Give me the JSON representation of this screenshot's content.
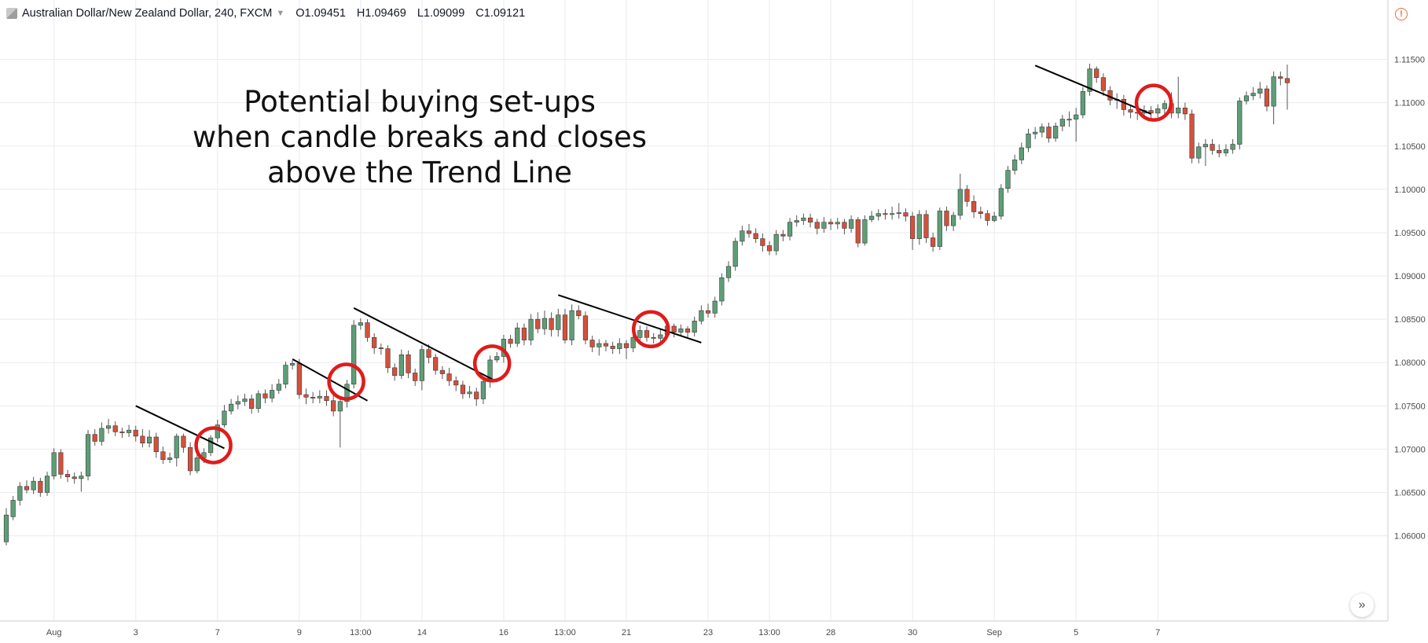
{
  "header": {
    "symbol": "Australian Dollar/New Zealand Dollar, 240, FXCM",
    "open": "O1.09451",
    "high": "H1.09469",
    "low": "L1.09099",
    "close": "C1.09121"
  },
  "colors": {
    "bull": "#5d9e77",
    "bear": "#d5503b",
    "trendline": "#000000",
    "circle": "#e01b1b",
    "grid": "#e9ebee",
    "axis_text": "#4a4a4a"
  },
  "icons": {
    "alert": "alert-icon",
    "scroll": "chevron-double-right-icon"
  },
  "chart_data": {
    "type": "candlestick",
    "title": "",
    "annotation": [
      "Potential buying set-ups",
      "when candle breaks and closes",
      "above the Trend Line"
    ],
    "ylim": [
      1.0547,
      1.1185
    ],
    "y_ticks": [
      1.06,
      1.065,
      1.07,
      1.075,
      1.08,
      1.085,
      1.09,
      1.095,
      1.1,
      1.105,
      1.11,
      1.115
    ],
    "y_tick_labels": [
      "1.06000",
      "1.06500",
      "1.07000",
      "1.07500",
      "1.08000",
      "1.08500",
      "1.09000",
      "1.09500",
      "1.10000",
      "1.10500",
      "1.11000",
      "1.11500"
    ],
    "x_labels": [
      {
        "label": "Aug",
        "index": 7
      },
      {
        "label": "3",
        "index": 19
      },
      {
        "label": "7",
        "index": 31
      },
      {
        "label": "9",
        "index": 43
      },
      {
        "label": "13:00",
        "index": 52
      },
      {
        "label": "14",
        "index": 61
      },
      {
        "label": "16",
        "index": 73
      },
      {
        "label": "13:00",
        "index": 82
      },
      {
        "label": "21",
        "index": 91
      },
      {
        "label": "23",
        "index": 103
      },
      {
        "label": "13:00",
        "index": 112
      },
      {
        "label": "28",
        "index": 121
      },
      {
        "label": "30",
        "index": 133
      },
      {
        "label": "Sep",
        "index": 145
      },
      {
        "label": "5",
        "index": 157
      },
      {
        "label": "7",
        "index": 169
      }
    ],
    "candles": [
      [
        1.0593,
        1.0624,
        1.0589,
        1.0632
      ],
      [
        1.0622,
        1.0641,
        1.0618,
        1.0646
      ],
      [
        1.0641,
        1.0657,
        1.0635,
        1.0662
      ],
      [
        1.0657,
        1.0653,
        1.0649,
        1.0664
      ],
      [
        1.0653,
        1.0663,
        1.0648,
        1.0668
      ],
      [
        1.0663,
        1.065,
        1.0645,
        1.0667
      ],
      [
        1.065,
        1.0669,
        1.0646,
        1.0674
      ],
      [
        1.0669,
        1.0696,
        1.0665,
        1.0701
      ],
      [
        1.0696,
        1.0671,
        1.0666,
        1.07
      ],
      [
        1.0671,
        1.0668,
        1.0662,
        1.0676
      ],
      [
        1.0668,
        1.0666,
        1.066,
        1.0673
      ],
      [
        1.0666,
        1.0669,
        1.0651,
        1.0674
      ],
      [
        1.0669,
        1.0717,
        1.0664,
        1.0722
      ],
      [
        1.0717,
        1.0709,
        1.0704,
        1.0723
      ],
      [
        1.0709,
        1.0724,
        1.0704,
        1.0731
      ],
      [
        1.0724,
        1.0727,
        1.0718,
        1.0735
      ],
      [
        1.0727,
        1.072,
        1.0715,
        1.0732
      ],
      [
        1.072,
        1.0719,
        1.0713,
        1.0725
      ],
      [
        1.0719,
        1.0722,
        1.0714,
        1.0728
      ],
      [
        1.0722,
        1.0715,
        1.0709,
        1.0727
      ],
      [
        1.0715,
        1.0707,
        1.0702,
        1.0723
      ],
      [
        1.0707,
        1.0714,
        1.0702,
        1.0722
      ],
      [
        1.0714,
        1.0697,
        1.069,
        1.0719
      ],
      [
        1.0697,
        1.0688,
        1.0683,
        1.0703
      ],
      [
        1.0688,
        1.069,
        1.0684,
        1.0696
      ],
      [
        1.069,
        1.0715,
        1.068,
        1.0718
      ],
      [
        1.0715,
        1.0702,
        1.0696,
        1.0718
      ],
      [
        1.0702,
        1.0675,
        1.067,
        1.0708
      ],
      [
        1.0675,
        1.069,
        1.0672,
        1.0697
      ],
      [
        1.069,
        1.0696,
        1.0684,
        1.0701
      ],
      [
        1.0696,
        1.0713,
        1.0692,
        1.0716
      ],
      [
        1.0713,
        1.0728,
        1.0708,
        1.0734
      ],
      [
        1.0728,
        1.0744,
        1.0725,
        1.0751
      ],
      [
        1.0744,
        1.0752,
        1.074,
        1.0758
      ],
      [
        1.0752,
        1.0755,
        1.0746,
        1.0762
      ],
      [
        1.0755,
        1.0758,
        1.075,
        1.0764
      ],
      [
        1.0758,
        1.0747,
        1.0741,
        1.0763
      ],
      [
        1.0747,
        1.0764,
        1.0742,
        1.0768
      ],
      [
        1.0764,
        1.0759,
        1.0753,
        1.0769
      ],
      [
        1.0759,
        1.0768,
        1.0754,
        1.0775
      ],
      [
        1.0768,
        1.0775,
        1.0764,
        1.0781
      ],
      [
        1.0775,
        1.0797,
        1.077,
        1.0801
      ],
      [
        1.0797,
        1.0799,
        1.0792,
        1.0803
      ],
      [
        1.0799,
        1.0763,
        1.0758,
        1.0804
      ],
      [
        1.0763,
        1.076,
        1.0752,
        1.077
      ],
      [
        1.076,
        1.0759,
        1.0753,
        1.0766
      ],
      [
        1.0759,
        1.0761,
        1.0753,
        1.0768
      ],
      [
        1.0761,
        1.0756,
        1.075,
        1.0768
      ],
      [
        1.0756,
        1.0744,
        1.0738,
        1.0762
      ],
      [
        1.0744,
        1.0755,
        1.0702,
        1.076
      ],
      [
        1.0755,
        1.0775,
        1.0748,
        1.078
      ],
      [
        1.0775,
        1.0843,
        1.077,
        1.0849
      ],
      [
        1.0843,
        1.0846,
        1.0838,
        1.0851
      ],
      [
        1.0846,
        1.0829,
        1.0824,
        1.085
      ],
      [
        1.0829,
        1.0817,
        1.081,
        1.0834
      ],
      [
        1.0817,
        1.0816,
        1.0809,
        1.0822
      ],
      [
        1.0816,
        1.0794,
        1.0788,
        1.082
      ],
      [
        1.0794,
        1.0785,
        1.0779,
        1.0799
      ],
      [
        1.0785,
        1.0809,
        1.0781,
        1.0815
      ],
      [
        1.0809,
        1.0788,
        1.0782,
        1.0814
      ],
      [
        1.0788,
        1.0779,
        1.0773,
        1.0793
      ],
      [
        1.0779,
        1.0815,
        1.0768,
        1.082
      ],
      [
        1.0815,
        1.0806,
        1.0799,
        1.0821
      ],
      [
        1.0806,
        1.0791,
        1.0786,
        1.081
      ],
      [
        1.0791,
        1.0787,
        1.0781,
        1.0796
      ],
      [
        1.0787,
        1.0779,
        1.0773,
        1.0794
      ],
      [
        1.0779,
        1.0774,
        1.0767,
        1.0784
      ],
      [
        1.0774,
        1.0764,
        1.0758,
        1.0779
      ],
      [
        1.0764,
        1.0766,
        1.0759,
        1.0773
      ],
      [
        1.0766,
        1.0758,
        1.075,
        1.0771
      ],
      [
        1.0758,
        1.0778,
        1.0752,
        1.0783
      ],
      [
        1.0778,
        1.0803,
        1.0771,
        1.0808
      ],
      [
        1.0803,
        1.0807,
        1.08,
        1.0812
      ],
      [
        1.0807,
        1.0827,
        1.08,
        1.0832
      ],
      [
        1.0827,
        1.0822,
        1.0817,
        1.0832
      ],
      [
        1.0822,
        1.084,
        1.0818,
        1.0846
      ],
      [
        1.084,
        1.0826,
        1.082,
        1.0845
      ],
      [
        1.0826,
        1.085,
        1.082,
        1.0856
      ],
      [
        1.085,
        1.0839,
        1.0834,
        1.0858
      ],
      [
        1.0839,
        1.0851,
        1.0832,
        1.086
      ],
      [
        1.0851,
        1.0838,
        1.083,
        1.0858
      ],
      [
        1.0838,
        1.0855,
        1.083,
        1.0862
      ],
      [
        1.0855,
        1.0826,
        1.0822,
        1.0862
      ],
      [
        1.0826,
        1.086,
        1.082,
        1.0867
      ],
      [
        1.086,
        1.0854,
        1.085,
        1.0866
      ],
      [
        1.0854,
        1.0826,
        1.0821,
        1.0859
      ],
      [
        1.0826,
        1.0818,
        1.0812,
        1.0831
      ],
      [
        1.0818,
        1.0822,
        1.0808,
        1.0827
      ],
      [
        1.0822,
        1.0819,
        1.0813,
        1.0826
      ],
      [
        1.0819,
        1.0816,
        1.081,
        1.0824
      ],
      [
        1.0816,
        1.0822,
        1.081,
        1.0828
      ],
      [
        1.0822,
        1.0817,
        1.0804,
        1.0826
      ],
      [
        1.0817,
        1.0829,
        1.0812,
        1.0834
      ],
      [
        1.0829,
        1.0837,
        1.0824,
        1.0843
      ],
      [
        1.0837,
        1.0829,
        1.0824,
        1.0842
      ],
      [
        1.0829,
        1.0828,
        1.0822,
        1.0834
      ],
      [
        1.0828,
        1.0832,
        1.0824,
        1.0838
      ],
      [
        1.0832,
        1.0842,
        1.0828,
        1.0846
      ],
      [
        1.0842,
        1.0835,
        1.0829,
        1.0845
      ],
      [
        1.0835,
        1.0839,
        1.083,
        1.0844
      ],
      [
        1.0839,
        1.0835,
        1.0829,
        1.0842
      ],
      [
        1.0835,
        1.0848,
        1.083,
        1.0853
      ],
      [
        1.0848,
        1.086,
        1.0844,
        1.0866
      ],
      [
        1.086,
        1.0857,
        1.0852,
        1.0868
      ],
      [
        1.0857,
        1.0871,
        1.0852,
        1.0876
      ],
      [
        1.0871,
        1.0898,
        1.0866,
        1.0903
      ],
      [
        1.0898,
        1.0911,
        1.0893,
        1.0917
      ],
      [
        1.0911,
        1.094,
        1.0906,
        1.0944
      ],
      [
        1.094,
        1.0952,
        1.0935,
        1.0958
      ],
      [
        1.0952,
        1.0949,
        1.0944,
        1.096
      ],
      [
        1.0949,
        1.0943,
        1.0938,
        1.0955
      ],
      [
        1.0943,
        1.0935,
        1.0928,
        1.0949
      ],
      [
        1.0935,
        1.0929,
        1.0924,
        1.094
      ],
      [
        1.0929,
        1.0948,
        1.0924,
        1.0953
      ],
      [
        1.0948,
        1.0946,
        1.094,
        1.0953
      ],
      [
        1.0946,
        1.0962,
        1.0941,
        1.0967
      ],
      [
        1.0962,
        1.0964,
        1.0957,
        1.097
      ],
      [
        1.0964,
        1.0967,
        1.0959,
        1.0972
      ],
      [
        1.0967,
        1.0962,
        1.0956,
        1.0972
      ],
      [
        1.0962,
        1.0955,
        1.0948,
        1.0966
      ],
      [
        1.0955,
        1.0962,
        1.095,
        1.0968
      ],
      [
        1.0962,
        1.096,
        1.0953,
        1.0966
      ],
      [
        1.096,
        1.0962,
        1.0954,
        1.0967
      ],
      [
        1.0962,
        1.0955,
        1.0948,
        1.0966
      ],
      [
        1.0955,
        1.0965,
        1.095,
        1.097
      ],
      [
        1.0965,
        1.0938,
        1.0933,
        1.0968
      ],
      [
        1.0938,
        1.0965,
        1.0935,
        1.097
      ],
      [
        1.0965,
        1.0969,
        1.0962,
        1.0975
      ],
      [
        1.0969,
        1.0972,
        1.0964,
        1.0977
      ],
      [
        1.0972,
        1.0971,
        1.0965,
        1.0977
      ],
      [
        1.0971,
        1.0972,
        1.0965,
        1.098
      ],
      [
        1.0972,
        1.0973,
        1.0966,
        1.0984
      ],
      [
        1.0973,
        1.0969,
        1.0963,
        1.0978
      ],
      [
        1.0969,
        1.0943,
        1.093,
        1.0974
      ],
      [
        1.0943,
        1.0971,
        1.0936,
        1.0976
      ],
      [
        1.0971,
        1.0944,
        1.0938,
        1.0976
      ],
      [
        1.0944,
        1.0934,
        1.0928,
        1.095
      ],
      [
        1.0934,
        1.0975,
        1.093,
        1.0979
      ],
      [
        1.0975,
        1.0958,
        1.0952,
        1.098
      ],
      [
        1.0958,
        1.097,
        1.0952,
        1.0974
      ],
      [
        1.097,
        1.1,
        1.0965,
        1.1018
      ],
      [
        1.1,
        1.0986,
        1.098,
        1.1005
      ],
      [
        1.0986,
        1.0974,
        1.0967,
        1.0993
      ],
      [
        1.0974,
        1.0972,
        1.0966,
        1.098
      ],
      [
        1.0972,
        1.0964,
        1.0958,
        1.0976
      ],
      [
        1.0964,
        1.0969,
        1.0962,
        1.0974
      ],
      [
        1.0969,
        1.1001,
        1.0965,
        1.1006
      ],
      [
        1.1001,
        1.1022,
        1.0996,
        1.1027
      ],
      [
        1.1022,
        1.1034,
        1.1017,
        1.104
      ],
      [
        1.1034,
        1.1048,
        1.1029,
        1.1054
      ],
      [
        1.1048,
        1.1064,
        1.1043,
        1.107
      ],
      [
        1.1064,
        1.1066,
        1.1058,
        1.1072
      ],
      [
        1.1066,
        1.1072,
        1.106,
        1.1076
      ],
      [
        1.1072,
        1.1059,
        1.1054,
        1.1077
      ],
      [
        1.1059,
        1.1073,
        1.1055,
        1.1077
      ],
      [
        1.1073,
        1.1081,
        1.1067,
        1.1086
      ],
      [
        1.1081,
        1.1081,
        1.1072,
        1.109
      ],
      [
        1.1081,
        1.1086,
        1.1055,
        1.1094
      ],
      [
        1.1086,
        1.1113,
        1.1082,
        1.1118
      ],
      [
        1.1113,
        1.1139,
        1.1108,
        1.1145
      ],
      [
        1.1139,
        1.1129,
        1.1123,
        1.1142
      ],
      [
        1.1129,
        1.1114,
        1.1108,
        1.1134
      ],
      [
        1.1114,
        1.1103,
        1.1097,
        1.1119
      ],
      [
        1.1103,
        1.1104,
        1.1093,
        1.1111
      ],
      [
        1.1104,
        1.1092,
        1.1085,
        1.1109
      ],
      [
        1.1092,
        1.1089,
        1.1082,
        1.1096
      ],
      [
        1.1089,
        1.1088,
        1.108,
        1.1094
      ],
      [
        1.1088,
        1.1091,
        1.1083,
        1.1097
      ],
      [
        1.1091,
        1.1088,
        1.1082,
        1.1096
      ],
      [
        1.1088,
        1.1093,
        1.1083,
        1.1098
      ],
      [
        1.1093,
        1.1099,
        1.1086,
        1.1103
      ],
      [
        1.1099,
        1.1088,
        1.1082,
        1.1112
      ],
      [
        1.1088,
        1.1094,
        1.1082,
        1.113
      ],
      [
        1.1094,
        1.1087,
        1.108,
        1.11
      ],
      [
        1.1087,
        1.1036,
        1.103,
        1.1092
      ],
      [
        1.1036,
        1.1049,
        1.103,
        1.1054
      ],
      [
        1.1049,
        1.1052,
        1.1027,
        1.1058
      ],
      [
        1.1052,
        1.1045,
        1.104,
        1.1058
      ],
      [
        1.1045,
        1.1042,
        1.1037,
        1.1052
      ],
      [
        1.1042,
        1.1046,
        1.1038,
        1.1052
      ],
      [
        1.1046,
        1.1052,
        1.1041,
        1.1058
      ],
      [
        1.1052,
        1.1102,
        1.1046,
        1.1106
      ],
      [
        1.1102,
        1.1108,
        1.1098,
        1.1113
      ],
      [
        1.1108,
        1.1111,
        1.1103,
        1.1118
      ],
      [
        1.1111,
        1.1116,
        1.1105,
        1.1124
      ],
      [
        1.1116,
        1.1096,
        1.109,
        1.112
      ],
      [
        1.1096,
        1.113,
        1.1075,
        1.1136
      ],
      [
        1.113,
        1.1128,
        1.112,
        1.1136
      ],
      [
        1.1128,
        1.1123,
        1.1092,
        1.1144
      ]
    ],
    "trend_lines": [
      {
        "i1": 19,
        "p1": 1.075,
        "i2": 32,
        "p2": 1.0701
      },
      {
        "i1": 42,
        "p1": 1.0804,
        "i2": 53,
        "p2": 1.0756
      },
      {
        "i1": 51,
        "p1": 1.0863,
        "i2": 72,
        "p2": 1.0778
      },
      {
        "i1": 81,
        "p1": 1.0878,
        "i2": 102,
        "p2": 1.0823
      },
      {
        "i1": 151,
        "p1": 1.1143,
        "i2": 168,
        "p2": 1.1087
      }
    ],
    "circles": [
      {
        "i": 30.4,
        "p": 1.07045
      },
      {
        "i": 49.9,
        "p": 1.0778
      },
      {
        "i": 71.3,
        "p": 1.0799
      },
      {
        "i": 94.6,
        "p": 1.08385
      },
      {
        "i": 168.4,
        "p": 1.11
      }
    ]
  }
}
